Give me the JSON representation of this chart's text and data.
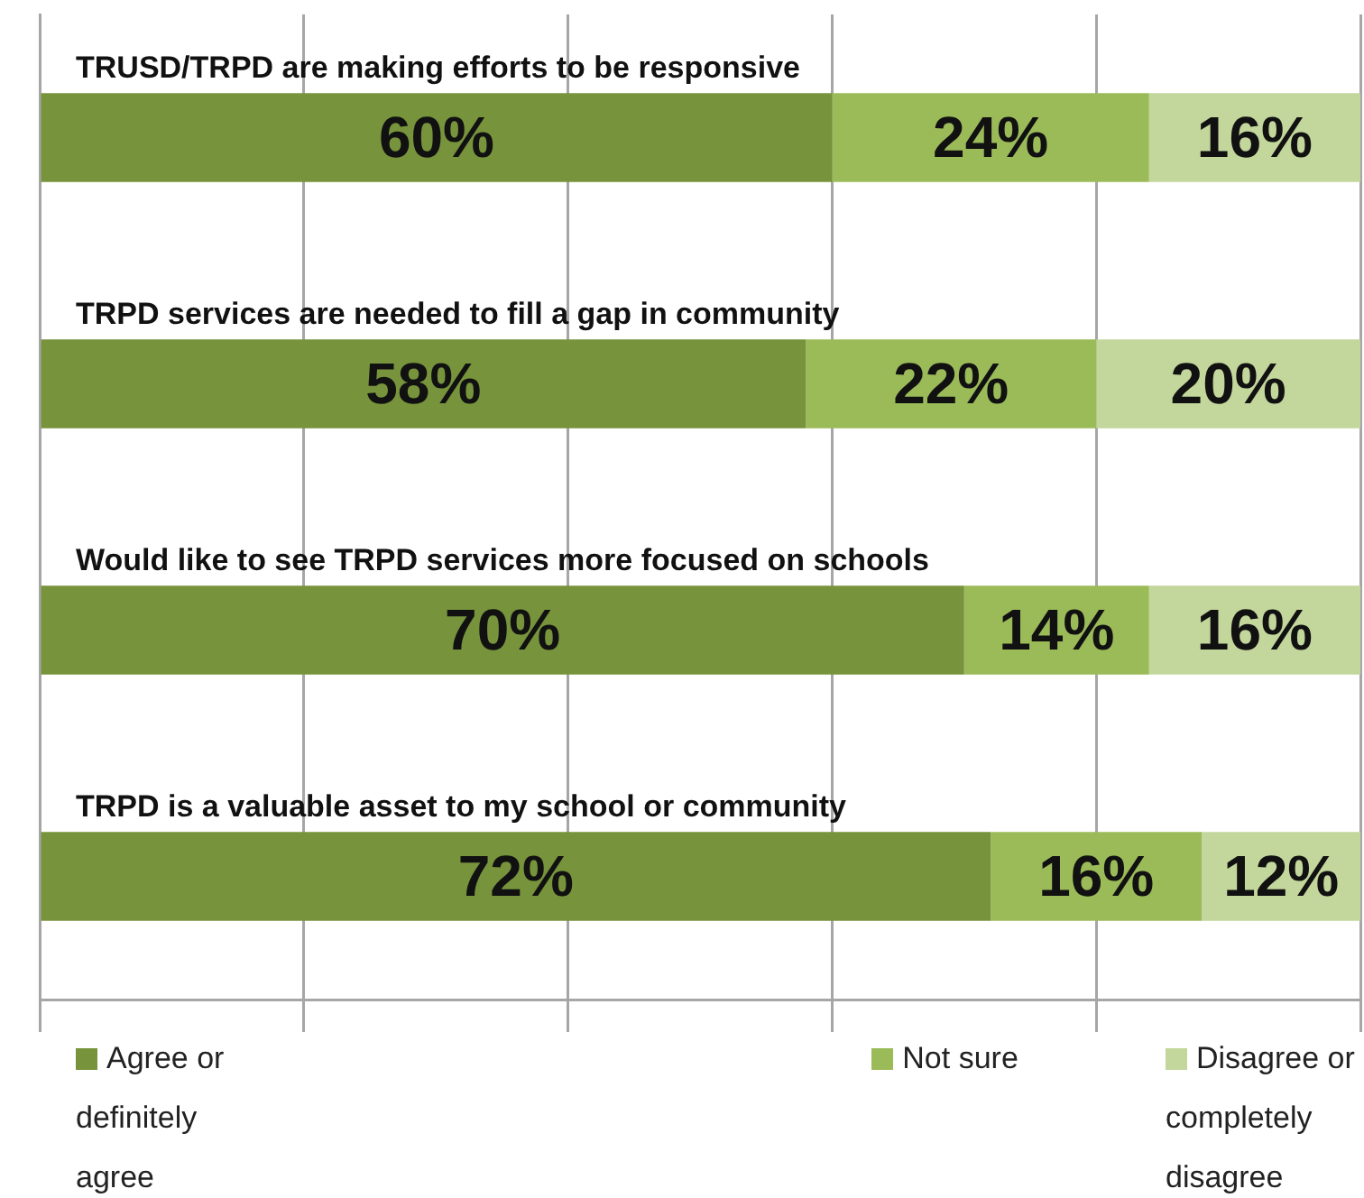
{
  "chart_data": {
    "type": "bar",
    "orientation": "horizontal",
    "stacked": true,
    "categories": [
      "TRUSD/TRPD are making efforts to be responsive",
      "TRPD services are needed to fill a gap in community",
      "Would like to see TRPD services more focused on schools",
      "TRPD is a valuable asset to my school or community"
    ],
    "series": [
      {
        "name": "Agree or definitely agree",
        "color": "#77933c",
        "values": [
          60,
          58,
          70,
          72
        ],
        "value_labels": [
          "60%",
          "58%",
          "70%",
          "72%"
        ]
      },
      {
        "name": "Not sure",
        "color": "#9bbb59",
        "values": [
          24,
          22,
          14,
          16
        ],
        "value_labels": [
          "24%",
          "22%",
          "14%",
          "16%"
        ]
      },
      {
        "name": "Disagree or completely disagree",
        "color": "#c3d69b",
        "values": [
          16,
          20,
          16,
          12
        ],
        "value_labels": [
          "16%",
          "20%",
          "16%",
          "12%"
        ]
      }
    ],
    "tick_labels": false,
    "grid": "x",
    "legend": "bottom"
  }
}
